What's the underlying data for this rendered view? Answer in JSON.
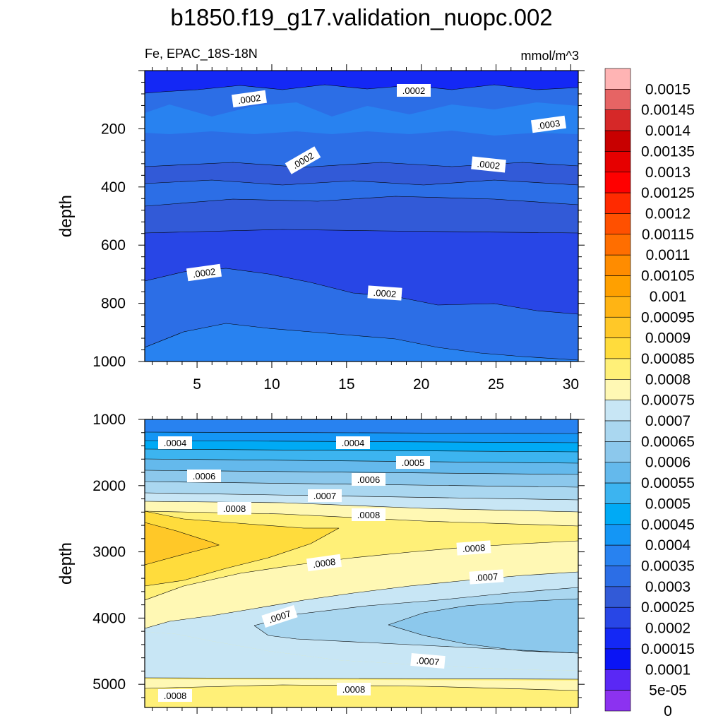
{
  "chart_data": {
    "title": "b1850.f19_g17.validation_nuopc.002",
    "variable_label": "Fe, EPAC_18S-18N",
    "units_label": "mmol/m^3",
    "colorbar": {
      "levels": [
        "0.0015",
        "0.00145",
        "0.0014",
        "0.00135",
        "0.0013",
        "0.00125",
        "0.0012",
        "0.00115",
        "0.0011",
        "0.00105",
        "0.001",
        "0.00095",
        "0.0009",
        "0.00085",
        "0.0008",
        "0.00075",
        "0.0007",
        "0.00065",
        "0.0006",
        "0.00055",
        "0.0005",
        "0.00045",
        "0.0004",
        "0.00035",
        "0.0003",
        "0.00025",
        "0.0002",
        "0.00015",
        "0.0001",
        "5e-05",
        "0"
      ],
      "colors": [
        "#ffb4b4",
        "#e66464",
        "#d62828",
        "#c80000",
        "#e60000",
        "#ff0000",
        "#ff2a00",
        "#ff5000",
        "#ff6e00",
        "#ff8c00",
        "#ffa000",
        "#ffb414",
        "#ffc828",
        "#ffdc3c",
        "#fff078",
        "#fff8b4",
        "#c8e6f5",
        "#aad7f0",
        "#8cc8ec",
        "#64b9ec",
        "#3cb4f0",
        "#00aaf5",
        "#1496f5",
        "#2882f0",
        "#2c6ee6",
        "#325ad7",
        "#2846e6",
        "#1428f5",
        "#0a14f5",
        "#5a28f5",
        "#8c32f0"
      ]
    },
    "panels": [
      {
        "type": "contour",
        "x_range": [
          1.5,
          30.5
        ],
        "y_range": [
          0,
          1000
        ],
        "xticks": [
          "5",
          "10",
          "15",
          "20",
          "25",
          "30"
        ],
        "yticks": [
          "200",
          "400",
          "600",
          "800",
          "1000"
        ],
        "ylabel": "depth",
        "contour_labels": [
          ".0002",
          ".0002",
          ".0003",
          ".0002",
          ".0002",
          ".0002",
          ".0002"
        ]
      },
      {
        "type": "contour",
        "x_range": [
          1.5,
          30.5
        ],
        "y_range": [
          1000,
          5350
        ],
        "yticks": [
          "1000",
          "2000",
          "3000",
          "4000",
          "5000"
        ],
        "ylabel": "depth",
        "contour_labels": [
          ".0004",
          ".0004",
          ".0005",
          ".0006",
          ".0006",
          ".0007",
          ".0008",
          ".0008",
          ".0008",
          ".0008",
          ".0007",
          ".0007",
          ".0007",
          ".0008",
          ".0008"
        ]
      }
    ]
  }
}
